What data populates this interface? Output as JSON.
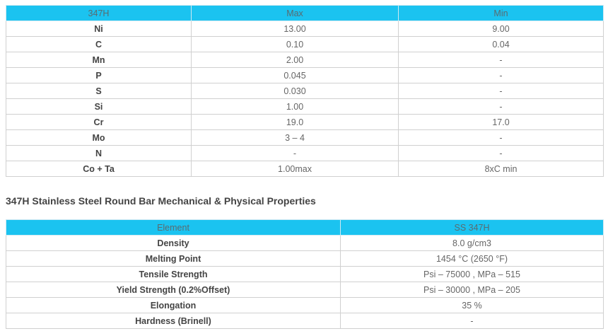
{
  "composition_table": {
    "headers": [
      "347H",
      "Max",
      "Min"
    ],
    "rows": [
      [
        "Ni",
        "13.00",
        "9.00"
      ],
      [
        "C",
        "0.10",
        "0.04"
      ],
      [
        "Mn",
        "2.00",
        "-"
      ],
      [
        "P",
        "0.045",
        "-"
      ],
      [
        "S",
        "0.030",
        "-"
      ],
      [
        "Si",
        "1.00",
        "-"
      ],
      [
        "Cr",
        "19.0",
        "17.0"
      ],
      [
        "Mo",
        "3 – 4",
        "-"
      ],
      [
        "N",
        "-",
        "-"
      ],
      [
        "Co + Ta",
        "1.00max",
        "8xC min"
      ]
    ]
  },
  "section_title": "347H Stainless Steel Round Bar Mechanical & Physical Properties",
  "properties_table": {
    "headers": [
      "Element",
      "SS 347H"
    ],
    "rows": [
      [
        "Density",
        "8.0 g/cm3"
      ],
      [
        "Melting Point",
        "1454 °C (2650 °F)"
      ],
      [
        "Tensile Strength",
        "Psi – 75000 , MPa – 515"
      ],
      [
        "Yield Strength (0.2%Offset)",
        "Psi – 30000 , MPa – 205"
      ],
      [
        "Elongation",
        "35 %"
      ],
      [
        "Hardness (Brinell)",
        "-"
      ]
    ]
  },
  "colors": {
    "header_bg": "#1bc3f0",
    "border": "#d0d0d0"
  }
}
